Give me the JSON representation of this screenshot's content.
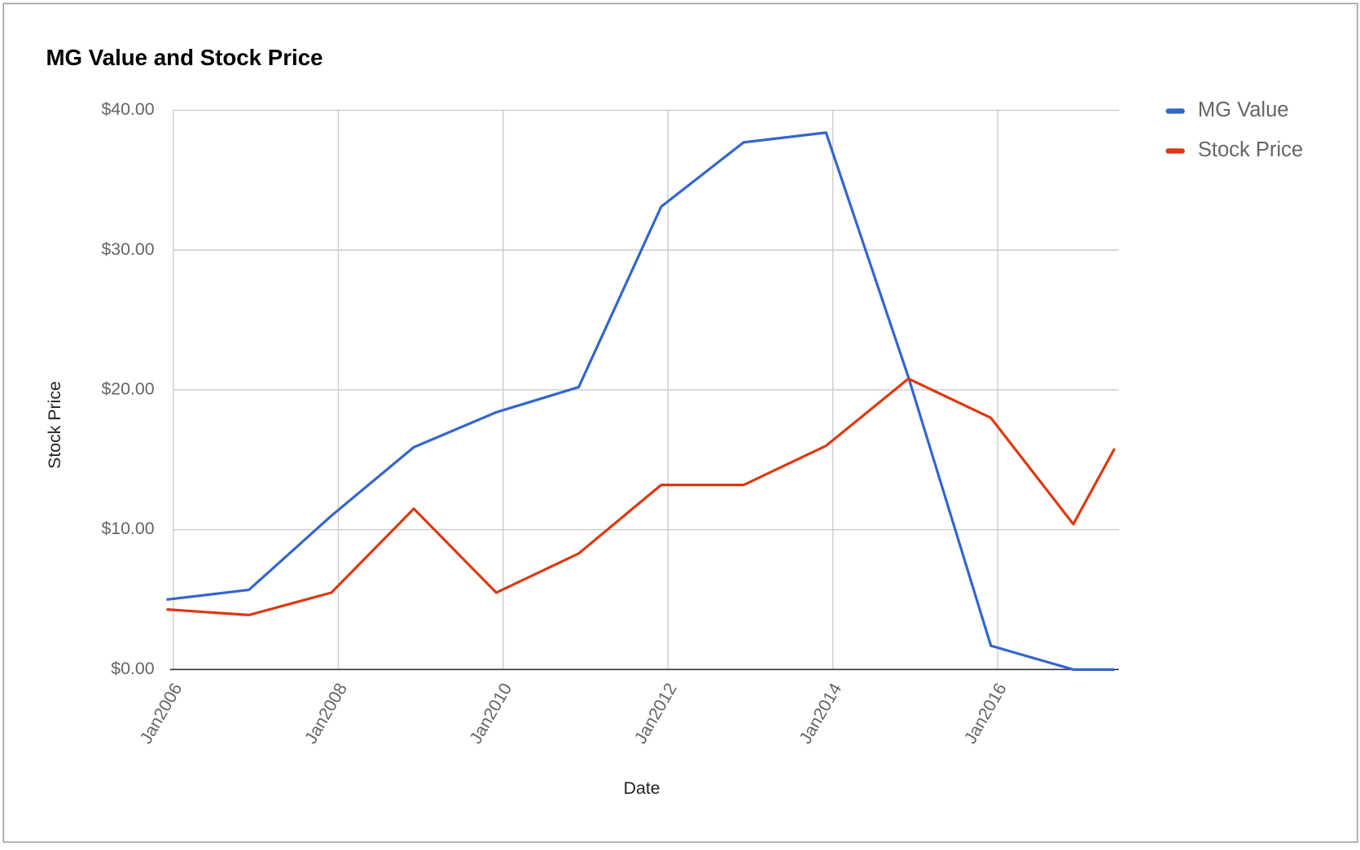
{
  "chart_data": {
    "type": "line",
    "title": "MG Value and Stock Price",
    "x_label": "Date",
    "y_label": "Stock Price",
    "x": [
      "2005-12",
      "2006-12",
      "2007-12",
      "2008-12",
      "2009-12",
      "2010-12",
      "2011-12",
      "2012-12",
      "2013-12",
      "2014-12",
      "2015-12",
      "2016-12",
      "2017-06"
    ],
    "series": [
      {
        "name": "MG Value",
        "color": "#3366cc",
        "values": [
          5.0,
          5.7,
          11.0,
          15.9,
          18.4,
          20.2,
          33.1,
          37.7,
          38.4,
          20.9,
          1.7,
          0,
          0
        ]
      },
      {
        "name": "Stock Price",
        "color": "#dc3912",
        "values": [
          4.3,
          3.9,
          5.5,
          11.5,
          5.5,
          8.3,
          13.2,
          13.2,
          16.0,
          20.8,
          18.0,
          10.4,
          15.8
        ]
      }
    ],
    "xlim": [
      "2005-12",
      "2017-06"
    ],
    "xticks": [
      {
        "value": "2006-01",
        "label": "Jan2006"
      },
      {
        "value": "2008-01",
        "label": "Jan2008"
      },
      {
        "value": "2010-01",
        "label": "Jan2010"
      },
      {
        "value": "2012-01",
        "label": "Jan2012"
      },
      {
        "value": "2014-01",
        "label": "Jan2014"
      },
      {
        "value": "2016-01",
        "label": "Jan2016"
      }
    ],
    "ylim": [
      0,
      40
    ],
    "yticks": [
      {
        "value": 0,
        "label": "$0.00"
      },
      {
        "value": 10,
        "label": "$10.00"
      },
      {
        "value": 20,
        "label": "$20.00"
      },
      {
        "value": 30,
        "label": "$30.00"
      },
      {
        "value": 40,
        "label": "$40.00"
      }
    ],
    "grid": true,
    "legend": "right"
  }
}
